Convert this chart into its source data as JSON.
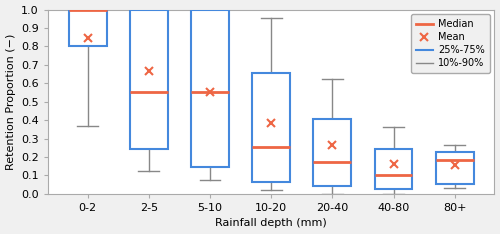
{
  "categories": [
    "0-2",
    "2-5",
    "5-10",
    "10-20",
    "20-40",
    "40-80",
    "80+"
  ],
  "boxes": {
    "q25": [
      0.8,
      0.245,
      0.145,
      0.065,
      0.045,
      0.025,
      0.055
    ],
    "q75": [
      1.0,
      1.0,
      1.0,
      0.655,
      0.405,
      0.245,
      0.225
    ],
    "median": [
      1.0,
      0.55,
      0.55,
      0.255,
      0.175,
      0.105,
      0.185
    ],
    "mean": [
      0.845,
      0.665,
      0.555,
      0.385,
      0.265,
      0.16,
      0.155
    ],
    "whis_lo": [
      0.37,
      0.125,
      0.075,
      0.02,
      0.0,
      0.0,
      0.03
    ],
    "whis_hi": [
      1.0,
      1.0,
      1.0,
      0.955,
      0.625,
      0.365,
      0.265
    ]
  },
  "box_color": "#4488DD",
  "median_color": "#EE6644",
  "mean_color": "#EE6644",
  "whisker_color": "#888888",
  "ylabel": "Retention Proportion (−)",
  "xlabel": "Rainfall depth (mm)",
  "ylim": [
    0.0,
    1.0
  ],
  "yticks": [
    0.0,
    0.1,
    0.2,
    0.3,
    0.4,
    0.5,
    0.6,
    0.7,
    0.8,
    0.9,
    1.0
  ],
  "bg_color": "#F0F0F0",
  "plot_bg": "#FFFFFF",
  "grid_color": "#FFFFFF",
  "box_width": 0.62,
  "figsize": [
    5.0,
    2.34
  ],
  "dpi": 100
}
